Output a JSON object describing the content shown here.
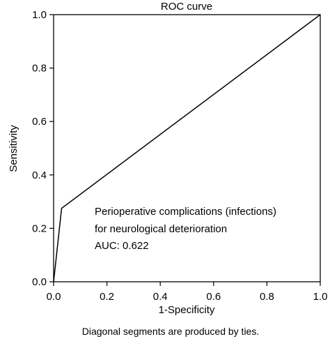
{
  "chart_data": {
    "type": "line",
    "title": "ROC curve",
    "xlabel": "1-Specificity",
    "ylabel": "Sensitivity",
    "xlim": [
      0.0,
      1.0
    ],
    "ylim": [
      0.0,
      1.0
    ],
    "x_ticks": [
      "0.0",
      "0.2",
      "0.4",
      "0.6",
      "0.8",
      "1.0"
    ],
    "y_ticks": [
      "0.0",
      "0.2",
      "0.4",
      "0.6",
      "0.8",
      "1.0"
    ],
    "grid": false,
    "series": [
      {
        "x": [
          0.0,
          0.03,
          1.0
        ],
        "y": [
          0.0,
          0.275,
          1.0
        ]
      }
    ],
    "annotation": [
      "Perioperative complications (infections)",
      "for neurological deterioration",
      "AUC: 0.622"
    ],
    "footnote": "Diagonal segments are produced by ties.",
    "colors": {
      "line": "#000000",
      "axes": "#000000",
      "background": "#ffffff"
    }
  }
}
